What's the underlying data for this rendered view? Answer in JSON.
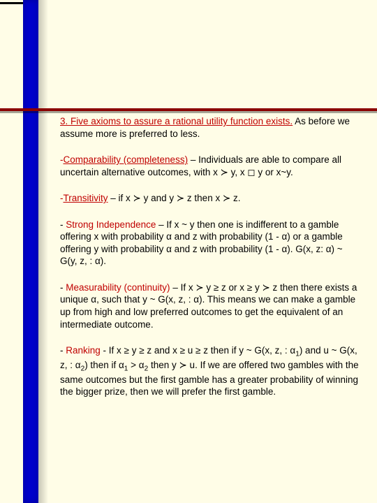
{
  "colors": {
    "page_bg": "#fffde7",
    "blue_bar": "#0000cc",
    "red_bar": "#8b0000",
    "heading_red": "#c00000",
    "text": "#000000"
  },
  "intro": {
    "heading": "3. Five axioms to assure a rational utility function exists.",
    "tail": " As before we assume more is preferred to less."
  },
  "axioms": {
    "comparability": {
      "dash": "-",
      "heading": "Comparability (completeness)",
      "body": " – Individuals are     able to compare all uncertain alternative outcomes, with x ≻ y,   x ◻ y or x~y."
    },
    "transitivity": {
      "dash": "-",
      "heading": "Transitivity",
      "body": " – if x ≻ y and y ≻ z then x ≻ z."
    },
    "strong_independence": {
      "prefix": "- ",
      "heading": "Strong Independence",
      "body": " – If x ~ y then one is indifferent to a gamble offering x with probability α and z with probability (1 - α) or a gamble offering y with probability α and z with probability (1 - α). G(x, z: α) ~ G(y, z, : α)."
    },
    "measurability": {
      "prefix": "- ",
      "heading": "Measurability (continuity)",
      "body": " – If x ≻ y ≥ z or x ≥ y ≻ z then there exists a unique α, such that y ~ G(x, z, : α). This means we can make a gamble up from high and low preferred outcomes to get the equivalent of an intermediate outcome."
    },
    "ranking": {
      "prefix": "- ",
      "heading": "Ranking",
      "body_a": " - If x ≥ y ≥ z and x ≥ u ≥ z then if y ~ G(x, z, : α",
      "sub1": "1",
      "body_b": ") and u ~ G(x, z, : α",
      "sub2": "2",
      "body_c": ") then if α",
      "sub3": "1",
      "body_d": " > α",
      "sub4": "2",
      "body_e": " then y ≻ u. If we are offered two gambles with the same outcomes but the first gamble has a greater probability of winning the bigger prize, then we will prefer the first gamble."
    }
  }
}
